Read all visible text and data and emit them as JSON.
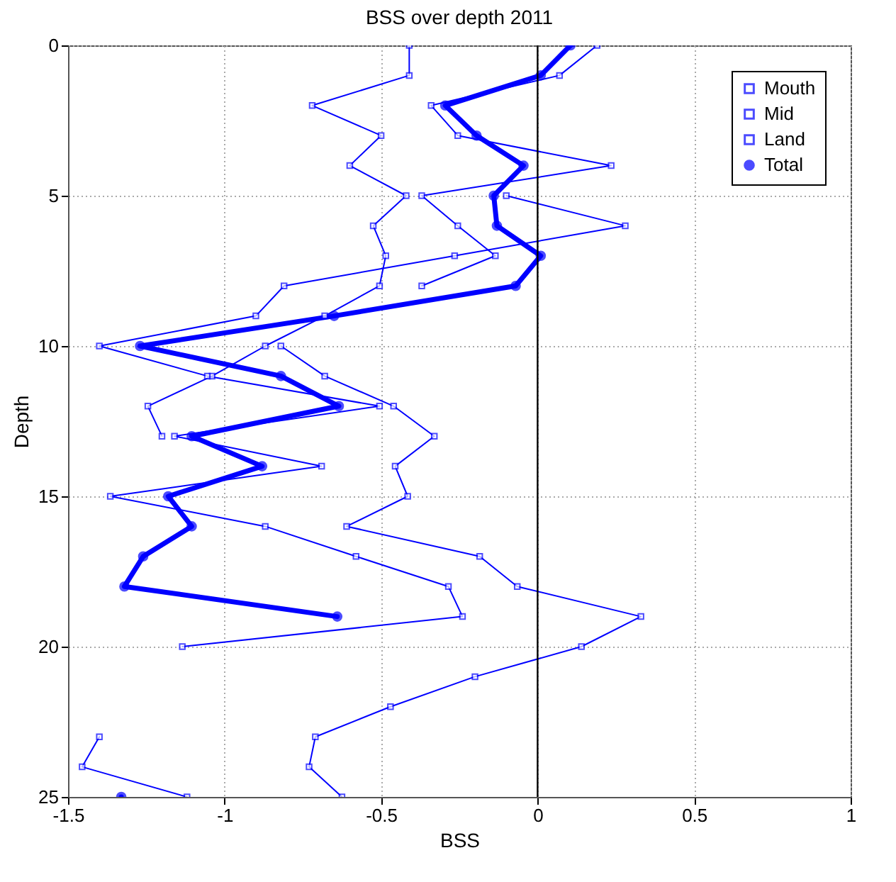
{
  "chart_data": {
    "type": "line",
    "title": "BSS over depth 2011",
    "xlabel": "BSS",
    "ylabel": "Depth",
    "orientation": "horizontal",
    "x": [
      0,
      1,
      2,
      3,
      4,
      5,
      6,
      7,
      8,
      9,
      10,
      11,
      12,
      13,
      14,
      15,
      16,
      17,
      18,
      19,
      20,
      21,
      22,
      23,
      24,
      25
    ],
    "series": [
      {
        "name": "Mouth",
        "color": "#0000ff",
        "marker": "square",
        "values": [
          0.19,
          0.07,
          -0.34,
          -0.255,
          0.235,
          -0.37,
          -0.255,
          -0.135,
          -0.37,
          null,
          -0.82,
          -0.68,
          -0.46,
          -0.33,
          -0.455,
          -0.415,
          -0.61,
          -0.185,
          -0.065,
          0.33,
          0.14,
          -0.2,
          -0.47,
          -0.71,
          -0.73,
          -0.625
        ]
      },
      {
        "name": "Mid",
        "color": "#0000ff",
        "marker": "square",
        "values": [
          -0.41,
          -0.41,
          -0.72,
          -0.5,
          -0.6,
          -0.42,
          -0.525,
          -0.485,
          -0.505,
          -0.68,
          -0.87,
          -1.04,
          -1.245,
          -1.2,
          null,
          null,
          null,
          null,
          null,
          null,
          null,
          null,
          null,
          null,
          null,
          null
        ]
      },
      {
        "name": "Land",
        "color": "#0000ff",
        "marker": "square",
        "values": [
          null,
          null,
          null,
          null,
          null,
          -0.1,
          0.28,
          -0.265,
          -0.81,
          -0.9,
          -1.4,
          -1.055,
          -0.505,
          -1.16,
          -0.69,
          -1.365,
          -0.87,
          -0.58,
          -0.285,
          -0.24,
          -1.135,
          null,
          null,
          -1.4,
          -1.455,
          -1.12
        ]
      },
      {
        "name": "Total",
        "color": "#0000ff",
        "marker": "circle",
        "values": [
          0.105,
          0.01,
          -0.295,
          -0.195,
          -0.045,
          -0.14,
          -0.13,
          0.01,
          -0.07,
          -0.65,
          -1.27,
          -0.82,
          -0.635,
          -1.105,
          -0.88,
          -1.18,
          -1.105,
          -1.26,
          -1.32,
          -0.64,
          null,
          null,
          null,
          null,
          null,
          -1.33
        ]
      }
    ],
    "xlim": [
      -1.5,
      1
    ],
    "xticks": [
      -1.5,
      -1,
      -0.5,
      0,
      0.5,
      1
    ],
    "ylim": [
      25,
      0
    ],
    "yticks": [
      0,
      5,
      10,
      15,
      20,
      25
    ],
    "ref_lines": [
      {
        "axis": "x",
        "value": 0,
        "color": "#000000"
      }
    ],
    "grid": true,
    "legend": "top right",
    "line_style": "solid"
  }
}
